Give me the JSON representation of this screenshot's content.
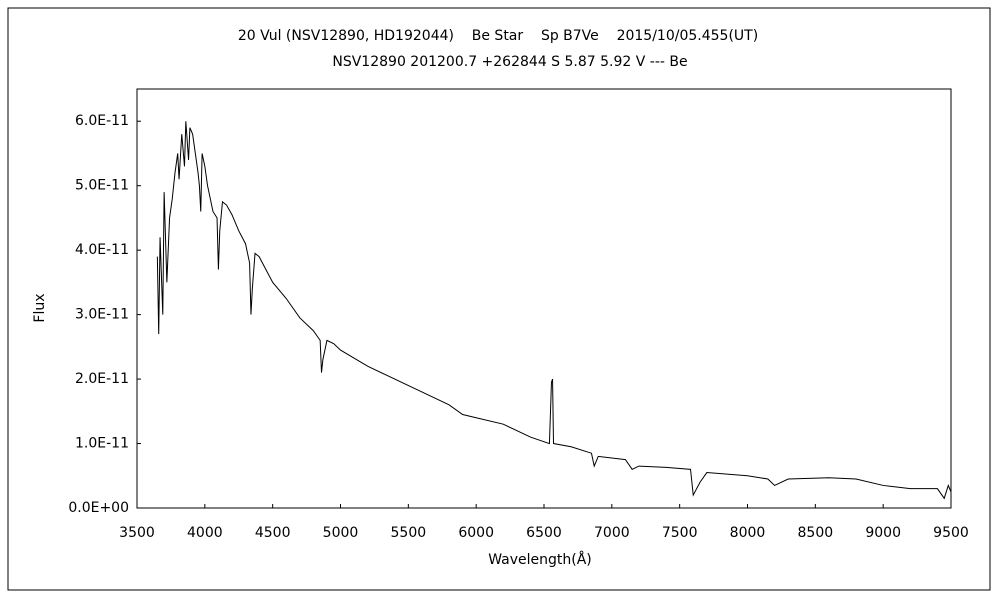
{
  "chart_data": {
    "type": "line",
    "title": "20 Vul (NSV12890, HD192044)    Be Star    Sp B7Ve    2015/10/05.455(UT)",
    "subtitle": "NSV12890 201200.7 +262844 S 5.87 5.92 V --- Be",
    "x_label": "Wavelength(Å)",
    "y_label": "Flux",
    "color": "#000000",
    "x": [
      3650,
      3660,
      3670,
      3690,
      3700,
      3720,
      3740,
      3760,
      3780,
      3800,
      3810,
      3830,
      3850,
      3860,
      3880,
      3890,
      3910,
      3930,
      3950,
      3960,
      3970,
      3980,
      4000,
      4020,
      4060,
      4090,
      4100,
      4110,
      4130,
      4160,
      4200,
      4250,
      4300,
      4330,
      4340,
      4350,
      4370,
      4400,
      4450,
      4500,
      4600,
      4700,
      4800,
      4850,
      4860,
      4870,
      4900,
      4950,
      5000,
      5200,
      5400,
      5600,
      5800,
      5900,
      6000,
      6200,
      6400,
      6540,
      6555,
      6563,
      6570,
      6700,
      6850,
      6870,
      6900,
      7100,
      7150,
      7200,
      7400,
      7580,
      7600,
      7650,
      7700,
      8000,
      8150,
      8200,
      8300,
      8600,
      8800,
      9000,
      9200,
      9400,
      9450,
      9480,
      9500
    ],
    "values": [
      3.9e-11,
      2.7e-11,
      4.2e-11,
      3e-11,
      4.9e-11,
      3.5e-11,
      4.5e-11,
      4.8e-11,
      5.2e-11,
      5.5e-11,
      5.1e-11,
      5.8e-11,
      5.3e-11,
      6e-11,
      5.4e-11,
      5.9e-11,
      5.8e-11,
      5.5e-11,
      5.2e-11,
      5e-11,
      4.6e-11,
      5.5e-11,
      5.3e-11,
      5e-11,
      4.6e-11,
      4.5e-11,
      3.7e-11,
      4.3e-11,
      4.75e-11,
      4.7e-11,
      4.55e-11,
      4.3e-11,
      4.1e-11,
      3.8e-11,
      3e-11,
      3.4e-11,
      3.95e-11,
      3.9e-11,
      3.7e-11,
      3.5e-11,
      3.25e-11,
      2.95e-11,
      2.75e-11,
      2.6e-11,
      2.1e-11,
      2.3e-11,
      2.6e-11,
      2.55e-11,
      2.45e-11,
      2.2e-11,
      2e-11,
      1.8e-11,
      1.6e-11,
      1.45e-11,
      1.4e-11,
      1.3e-11,
      1.1e-11,
      1e-11,
      1.95e-11,
      2e-11,
      1e-11,
      9.5e-12,
      8.5e-12,
      6.5e-12,
      8e-12,
      7.5e-12,
      6e-12,
      6.5e-12,
      6.3e-12,
      6e-12,
      2e-12,
      4e-12,
      5.5e-12,
      5e-12,
      4.5e-12,
      3.5e-12,
      4.5e-12,
      4.7e-12,
      4.5e-12,
      3.5e-12,
      3e-12,
      3e-12,
      1.5e-12,
      3.5e-12,
      2.5e-12
    ],
    "xlim": [
      3500,
      9500
    ],
    "ylim": [
      0,
      6.5e-11
    ],
    "xticks": [
      3500,
      4000,
      4500,
      5000,
      5500,
      6000,
      6500,
      7000,
      7500,
      8000,
      8500,
      9000,
      9500
    ],
    "yticks": [
      {
        "value": 0,
        "label": "0.0E+00"
      },
      {
        "value": 1e-11,
        "label": "1.0E-11"
      },
      {
        "value": 2e-11,
        "label": "2.0E-11"
      },
      {
        "value": 3e-11,
        "label": "3.0E-11"
      },
      {
        "value": 4e-11,
        "label": "4.0E-11"
      },
      {
        "value": 5e-11,
        "label": "5.0E-11"
      },
      {
        "value": 6e-11,
        "label": "6.0E-11"
      }
    ]
  }
}
